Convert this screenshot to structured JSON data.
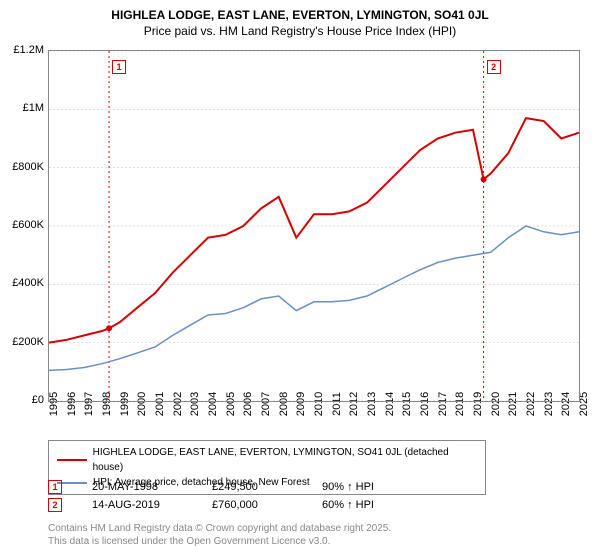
{
  "title": "HIGHLEA LODGE, EAST LANE, EVERTON, LYMINGTON, SO41 0JL",
  "subtitle": "Price paid vs. HM Land Registry's House Price Index (HPI)",
  "chart": {
    "type": "line",
    "background_color": "#ffffff",
    "border_color": "#888888",
    "grid_color": "#cccccc",
    "y": {
      "min": 0,
      "max": 1200000,
      "ticks": [
        0,
        200000,
        400000,
        600000,
        800000,
        1000000,
        1200000
      ],
      "labels": [
        "£0",
        "£200K",
        "£400K",
        "£600K",
        "£800K",
        "£1M",
        "£1.2M"
      ]
    },
    "x": {
      "min": 1995,
      "max": 2025,
      "labels": [
        "1995",
        "1996",
        "1997",
        "1998",
        "1999",
        "2000",
        "2001",
        "2002",
        "2003",
        "2004",
        "2005",
        "2006",
        "2007",
        "2008",
        "2009",
        "2010",
        "2011",
        "2012",
        "2013",
        "2014",
        "2015",
        "2016",
        "2017",
        "2018",
        "2019",
        "2020",
        "2021",
        "2022",
        "2023",
        "2024",
        "2025"
      ]
    },
    "series": [
      {
        "name": "price_paid",
        "label": "HIGHLEA LODGE, EAST LANE, EVERTON, LYMINGTON, SO41 0JL (detached house)",
        "color": "#d40000",
        "line_width": 2,
        "data": [
          [
            1995,
            200000
          ],
          [
            1996,
            210000
          ],
          [
            1997,
            225000
          ],
          [
            1998,
            240000
          ],
          [
            1998.4,
            249500
          ],
          [
            1999,
            270000
          ],
          [
            2000,
            320000
          ],
          [
            2001,
            370000
          ],
          [
            2002,
            440000
          ],
          [
            2003,
            500000
          ],
          [
            2004,
            560000
          ],
          [
            2005,
            570000
          ],
          [
            2006,
            600000
          ],
          [
            2007,
            660000
          ],
          [
            2008,
            700000
          ],
          [
            2009,
            560000
          ],
          [
            2010,
            640000
          ],
          [
            2011,
            640000
          ],
          [
            2012,
            650000
          ],
          [
            2013,
            680000
          ],
          [
            2014,
            740000
          ],
          [
            2015,
            800000
          ],
          [
            2016,
            860000
          ],
          [
            2017,
            900000
          ],
          [
            2018,
            920000
          ],
          [
            2019,
            930000
          ],
          [
            2019.6,
            760000
          ],
          [
            2020,
            780000
          ],
          [
            2021,
            850000
          ],
          [
            2022,
            970000
          ],
          [
            2023,
            960000
          ],
          [
            2024,
            900000
          ],
          [
            2025,
            920000
          ]
        ]
      },
      {
        "name": "hpi",
        "label": "HPI: Average price, detached house, New Forest",
        "color": "#6a8fc5",
        "line_width": 1.5,
        "data": [
          [
            1995,
            105000
          ],
          [
            1996,
            108000
          ],
          [
            1997,
            115000
          ],
          [
            1998,
            128000
          ],
          [
            1999,
            145000
          ],
          [
            2000,
            165000
          ],
          [
            2001,
            185000
          ],
          [
            2002,
            225000
          ],
          [
            2003,
            260000
          ],
          [
            2004,
            295000
          ],
          [
            2005,
            300000
          ],
          [
            2006,
            320000
          ],
          [
            2007,
            350000
          ],
          [
            2008,
            360000
          ],
          [
            2009,
            310000
          ],
          [
            2010,
            340000
          ],
          [
            2011,
            340000
          ],
          [
            2012,
            345000
          ],
          [
            2013,
            360000
          ],
          [
            2014,
            390000
          ],
          [
            2015,
            420000
          ],
          [
            2016,
            450000
          ],
          [
            2017,
            475000
          ],
          [
            2018,
            490000
          ],
          [
            2019,
            500000
          ],
          [
            2020,
            510000
          ],
          [
            2021,
            560000
          ],
          [
            2022,
            600000
          ],
          [
            2023,
            580000
          ],
          [
            2024,
            570000
          ],
          [
            2025,
            580000
          ]
        ]
      }
    ],
    "sale_markers": [
      {
        "id": "1",
        "x": 1998.4,
        "color": "#d40000"
      },
      {
        "id": "2",
        "x": 2019.6,
        "color": "#d40000"
      }
    ]
  },
  "legend": {
    "items": [
      {
        "label": "HIGHLEA LODGE, EAST LANE, EVERTON, LYMINGTON, SO41 0JL (detached house)",
        "color": "#d40000"
      },
      {
        "label": "HPI: Average price, detached house, New Forest",
        "color": "#6a8fc5"
      }
    ]
  },
  "sales": [
    {
      "id": "1",
      "date": "20-MAY-1998",
      "price": "£249,500",
      "vs_hpi": "90% ↑ HPI",
      "color": "#d40000"
    },
    {
      "id": "2",
      "date": "14-AUG-2019",
      "price": "£760,000",
      "vs_hpi": "60% ↑ HPI",
      "color": "#d40000"
    }
  ],
  "footer": {
    "line1": "Contains HM Land Registry data © Crown copyright and database right 2025.",
    "line2": "This data is licensed under the Open Government Licence v3.0."
  }
}
